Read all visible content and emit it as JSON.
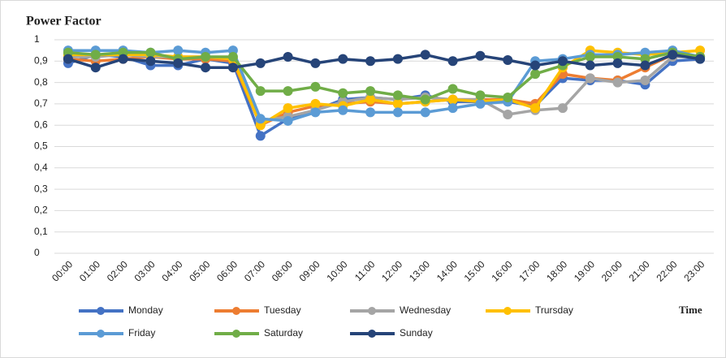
{
  "chart_data": {
    "type": "line",
    "title": "Power Factor",
    "x_label": "Time",
    "categories": [
      "00:00",
      "01:00",
      "02:00",
      "03:00",
      "04:00",
      "05:00",
      "06:00",
      "07:00",
      "08:00",
      "09:00",
      "10:00",
      "11:00",
      "12:00",
      "13:00",
      "14:00",
      "15:00",
      "16:00",
      "17:00",
      "18:00",
      "19:00",
      "20:00",
      "21:00",
      "22:00",
      "23:00"
    ],
    "ylim": [
      0,
      1
    ],
    "yticks": [
      0,
      {
        "value": 0.1,
        "label": "0,1"
      },
      {
        "value": 0.2,
        "label": "0,2"
      },
      {
        "value": 0.3,
        "label": "0,3"
      },
      {
        "value": 0.4,
        "label": "0,4"
      },
      {
        "value": 0.5,
        "label": "0,5"
      },
      {
        "value": 0.6,
        "label": "0,6"
      },
      {
        "value": 0.7,
        "label": "0,7"
      },
      {
        "value": 0.8,
        "label": "0,8"
      },
      {
        "value": 0.9,
        "label": "0,9"
      },
      1
    ],
    "grid": true,
    "legend": "bottom",
    "series": [
      {
        "name": "Monday",
        "color": "#4472c4",
        "values": [
          0.89,
          0.93,
          0.92,
          0.88,
          0.88,
          0.91,
          0.89,
          0.55,
          0.63,
          0.67,
          0.72,
          0.73,
          0.72,
          0.74,
          0.71,
          0.71,
          0.71,
          0.69,
          0.82,
          0.81,
          0.81,
          0.79,
          0.9,
          0.91
        ]
      },
      {
        "name": "Tuesday",
        "color": "#ed7d31",
        "values": [
          0.91,
          0.9,
          0.91,
          0.92,
          0.91,
          0.91,
          0.9,
          0.6,
          0.66,
          0.69,
          0.7,
          0.71,
          0.7,
          0.71,
          0.72,
          0.72,
          0.72,
          0.7,
          0.84,
          0.82,
          0.81,
          0.87,
          0.93,
          0.92
        ]
      },
      {
        "name": "Wednesday",
        "color": "#a5a5a5",
        "values": [
          0.92,
          0.92,
          0.93,
          0.92,
          0.92,
          0.92,
          0.91,
          0.62,
          0.64,
          0.67,
          0.71,
          0.73,
          0.72,
          0.73,
          0.72,
          0.72,
          0.65,
          0.67,
          0.68,
          0.82,
          0.8,
          0.81,
          0.92,
          0.92
        ]
      },
      {
        "name": "Trursday",
        "color": "#ffc000",
        "values": [
          0.93,
          0.93,
          0.93,
          0.93,
          0.92,
          0.92,
          0.91,
          0.6,
          0.68,
          0.7,
          0.69,
          0.72,
          0.7,
          0.71,
          0.72,
          0.71,
          0.72,
          0.68,
          0.87,
          0.95,
          0.94,
          0.93,
          0.94,
          0.95
        ]
      },
      {
        "name": "Friday",
        "color": "#5b9bd5",
        "values": [
          0.95,
          0.95,
          0.95,
          0.94,
          0.95,
          0.94,
          0.95,
          0.63,
          0.62,
          0.66,
          0.67,
          0.66,
          0.66,
          0.66,
          0.68,
          0.7,
          0.71,
          0.9,
          0.91,
          0.93,
          0.93,
          0.94,
          0.95,
          0.92
        ]
      },
      {
        "name": "Saturday",
        "color": "#70ad47",
        "values": [
          0.94,
          0.93,
          0.94,
          0.94,
          0.91,
          0.92,
          0.92,
          0.76,
          0.76,
          0.78,
          0.75,
          0.76,
          0.74,
          0.72,
          0.77,
          0.74,
          0.73,
          0.84,
          0.88,
          0.92,
          0.92,
          0.91,
          0.94,
          0.92
        ]
      },
      {
        "name": "Sunday",
        "color": "#264478",
        "values": [
          0.91,
          0.87,
          0.91,
          0.9,
          0.89,
          0.87,
          0.87,
          0.89,
          0.92,
          0.89,
          0.91,
          0.9,
          0.91,
          0.93,
          0.9,
          0.925,
          0.905,
          0.88,
          0.9,
          0.88,
          0.89,
          0.88,
          0.93,
          0.91
        ]
      }
    ]
  }
}
